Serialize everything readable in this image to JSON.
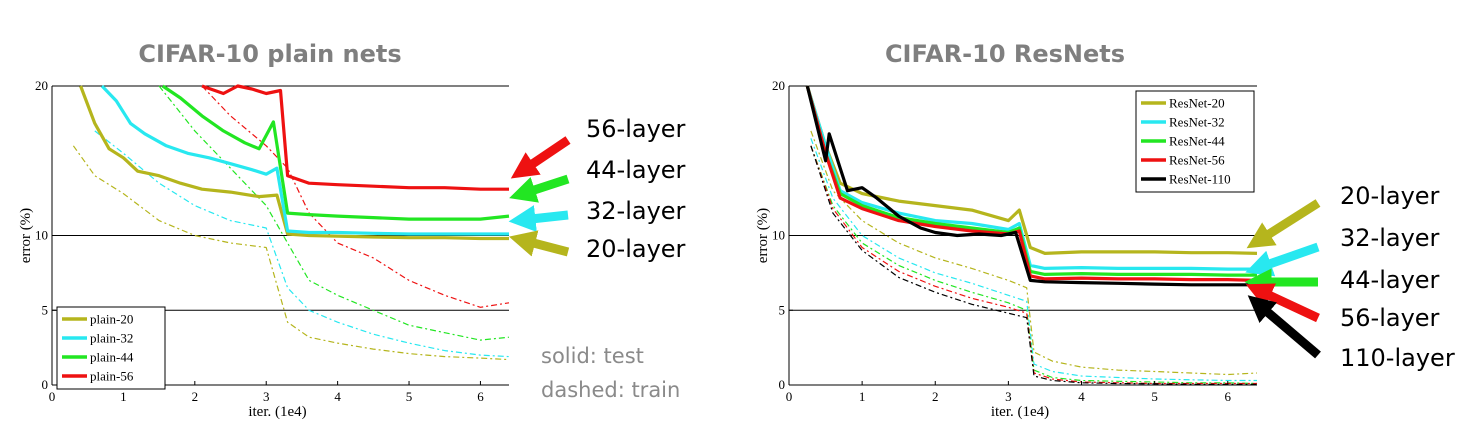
{
  "chart_data": [
    {
      "type": "line",
      "title": "CIFAR-10 plain nets",
      "xlabel": "iter. (1e4)",
      "ylabel": "error (%)",
      "xlim": [
        0,
        6.4
      ],
      "ylim": [
        0,
        20
      ],
      "xticks": [
        0,
        1,
        2,
        3,
        4,
        5,
        6
      ],
      "yticks": [
        0,
        5,
        10,
        20
      ],
      "grid": "horizontal lines at 5, 10, 20",
      "legend_position": "bottom-left",
      "legend": [
        "plain-20",
        "plain-32",
        "plain-44",
        "plain-56"
      ],
      "series": [
        {
          "name": "plain-20",
          "color": "#b5b51d",
          "style": "solid (test)",
          "x": [
            0.4,
            0.6,
            0.8,
            1.0,
            1.2,
            1.5,
            1.8,
            2.1,
            2.5,
            2.9,
            3.15,
            3.3,
            3.6,
            4.0,
            4.5,
            5.0,
            5.5,
            6.0,
            6.4
          ],
          "y": [
            20,
            17.5,
            15.8,
            15.2,
            14.3,
            14.0,
            13.5,
            13.1,
            12.9,
            12.6,
            12.7,
            10.1,
            10.0,
            9.95,
            9.9,
            9.85,
            9.85,
            9.8,
            9.8
          ]
        },
        {
          "name": "plain-32",
          "color": "#28e8f0",
          "style": "solid (test)",
          "x": [
            0.7,
            0.9,
            1.1,
            1.3,
            1.6,
            1.9,
            2.2,
            2.5,
            2.8,
            3.0,
            3.15,
            3.3,
            3.6,
            4.0,
            4.5,
            5.0,
            5.5,
            6.0,
            6.4
          ],
          "y": [
            20,
            19.0,
            17.5,
            16.8,
            16.0,
            15.5,
            15.2,
            14.8,
            14.4,
            14.1,
            14.5,
            10.3,
            10.2,
            10.2,
            10.15,
            10.1,
            10.1,
            10.1,
            10.1
          ]
        },
        {
          "name": "plain-44",
          "color": "#22e622",
          "style": "solid (test)",
          "x": [
            1.55,
            1.8,
            2.1,
            2.4,
            2.7,
            2.9,
            3.1,
            3.3,
            3.6,
            4.0,
            4.5,
            5.0,
            5.5,
            6.0,
            6.4
          ],
          "y": [
            20,
            19.2,
            18.0,
            17.0,
            16.2,
            15.8,
            17.6,
            11.5,
            11.4,
            11.3,
            11.2,
            11.1,
            11.1,
            11.1,
            11.3
          ]
        },
        {
          "name": "plain-56",
          "color": "#ee1111",
          "style": "solid (test)",
          "x": [
            2.1,
            2.4,
            2.6,
            2.8,
            3.0,
            3.2,
            3.3,
            3.6,
            4.0,
            4.5,
            5.0,
            5.5,
            6.0,
            6.4
          ],
          "y": [
            20,
            19.5,
            20,
            19.8,
            19.5,
            19.7,
            14.0,
            13.5,
            13.4,
            13.3,
            13.2,
            13.2,
            13.1,
            13.1
          ]
        },
        {
          "name": "plain-20",
          "color": "#b5b51d",
          "style": "dashed (train)",
          "x": [
            0.3,
            0.6,
            1.0,
            1.5,
            2.0,
            2.5,
            3.0,
            3.3,
            3.6,
            4.0,
            4.5,
            5.0,
            5.5,
            6.0,
            6.4
          ],
          "y": [
            16,
            14,
            12.8,
            11,
            10,
            9.5,
            9.2,
            4.2,
            3.2,
            2.8,
            2.4,
            2.1,
            1.9,
            1.8,
            1.7
          ]
        },
        {
          "name": "plain-32",
          "color": "#28e8f0",
          "style": "dashed (train)",
          "x": [
            0.6,
            1.0,
            1.5,
            2.0,
            2.5,
            3.0,
            3.3,
            3.6,
            4.0,
            4.5,
            5.0,
            5.5,
            6.0,
            6.4
          ],
          "y": [
            17,
            15.5,
            13.5,
            12.0,
            11.0,
            10.5,
            6.5,
            5.0,
            4.2,
            3.4,
            2.8,
            2.3,
            2.0,
            1.9
          ]
        },
        {
          "name": "plain-44",
          "color": "#22e622",
          "style": "dashed (train)",
          "x": [
            1.5,
            2.0,
            2.5,
            3.0,
            3.3,
            3.6,
            4.0,
            4.5,
            5.0,
            5.5,
            6.0,
            6.4
          ],
          "y": [
            20,
            17,
            14.5,
            12.0,
            9.5,
            7.0,
            6.0,
            5.0,
            4.0,
            3.5,
            3.0,
            3.2
          ]
        },
        {
          "name": "plain-56",
          "color": "#ee1111",
          "style": "dashed (train)",
          "x": [
            2.1,
            2.5,
            3.0,
            3.3,
            3.6,
            4.0,
            4.5,
            5.0,
            5.5,
            6.0,
            6.4
          ],
          "y": [
            20,
            18,
            16,
            14.5,
            11.5,
            9.5,
            8.5,
            7.0,
            6.0,
            5.2,
            5.5
          ]
        }
      ]
    },
    {
      "type": "line",
      "title": "CIFAR-10 ResNets",
      "xlabel": "iter. (1e4)",
      "ylabel": "error (%)",
      "xlim": [
        0,
        6.4
      ],
      "ylim": [
        0,
        20
      ],
      "xticks": [
        0,
        1,
        2,
        3,
        4,
        5,
        6
      ],
      "yticks": [
        0,
        5,
        10,
        20
      ],
      "grid": "horizontal lines at 5, 10, 20",
      "legend_position": "top-right",
      "legend": [
        "ResNet-20",
        "ResNet-32",
        "ResNet-44",
        "ResNet-56",
        "ResNet-110"
      ],
      "series": [
        {
          "name": "ResNet-20",
          "color": "#b5b51d",
          "style": "solid (test)",
          "x": [
            0.25,
            0.5,
            0.7,
            1.0,
            1.5,
            2.0,
            2.5,
            3.0,
            3.15,
            3.3,
            3.5,
            4.0,
            4.5,
            5.0,
            5.5,
            6.0,
            6.4
          ],
          "y": [
            20,
            16,
            13.5,
            12.8,
            12.3,
            12.0,
            11.7,
            11.0,
            11.7,
            9.2,
            8.8,
            8.9,
            8.9,
            8.9,
            8.85,
            8.85,
            8.8
          ]
        },
        {
          "name": "ResNet-32",
          "color": "#28e8f0",
          "style": "solid (test)",
          "x": [
            0.25,
            0.5,
            0.7,
            1.0,
            1.5,
            2.0,
            2.5,
            3.0,
            3.15,
            3.3,
            3.5,
            4.0,
            4.5,
            5.0,
            5.5,
            6.0,
            6.4
          ],
          "y": [
            20,
            16,
            13,
            12.2,
            11.5,
            11.0,
            10.8,
            10.4,
            10.8,
            8.0,
            7.8,
            7.85,
            7.8,
            7.8,
            7.8,
            7.75,
            7.75
          ]
        },
        {
          "name": "ResNet-44",
          "color": "#22e622",
          "style": "solid (test)",
          "x": [
            0.25,
            0.5,
            0.7,
            1.0,
            1.5,
            2.0,
            2.5,
            3.0,
            3.15,
            3.3,
            3.5,
            4.0,
            4.5,
            5.0,
            5.5,
            6.0,
            6.4
          ],
          "y": [
            20,
            15.5,
            12.8,
            12.0,
            11.2,
            10.8,
            10.5,
            10.2,
            10.5,
            7.6,
            7.4,
            7.45,
            7.4,
            7.4,
            7.4,
            7.35,
            7.35
          ]
        },
        {
          "name": "ResNet-56",
          "color": "#ee1111",
          "style": "solid (test)",
          "x": [
            0.25,
            0.5,
            0.7,
            1.0,
            1.5,
            2.0,
            2.5,
            3.0,
            3.15,
            3.3,
            3.5,
            4.0,
            4.5,
            5.0,
            5.5,
            6.0,
            6.4
          ],
          "y": [
            20,
            15.5,
            12.5,
            11.8,
            11.0,
            10.6,
            10.3,
            10.1,
            10.3,
            7.3,
            7.1,
            7.15,
            7.1,
            7.1,
            7.05,
            7.05,
            7.0
          ]
        },
        {
          "name": "ResNet-110",
          "color": "#000000",
          "style": "solid (test)",
          "x": [
            0.25,
            0.4,
            0.5,
            0.55,
            0.7,
            0.8,
            1.0,
            1.2,
            1.5,
            1.8,
            2.0,
            2.3,
            2.6,
            2.9,
            3.1,
            3.3,
            3.5,
            4.0,
            4.5,
            5.0,
            5.5,
            6.0,
            6.4
          ],
          "y": [
            20,
            17,
            15,
            16.8,
            14.5,
            13,
            13.2,
            12.5,
            11.3,
            10.5,
            10.2,
            10.0,
            10.1,
            10.0,
            10.2,
            7.0,
            6.9,
            6.85,
            6.8,
            6.75,
            6.7,
            6.7,
            6.7
          ]
        },
        {
          "name": "ResNet-20",
          "color": "#b5b51d",
          "style": "dashed (train)",
          "x": [
            0.3,
            0.6,
            1.0,
            1.5,
            2.0,
            2.5,
            3.0,
            3.25,
            3.35,
            3.6,
            4.0,
            4.5,
            5.0,
            5.5,
            6.0,
            6.4
          ],
          "y": [
            17,
            13,
            11,
            9.5,
            8.5,
            7.8,
            7.0,
            6.5,
            2.2,
            1.6,
            1.2,
            1.0,
            0.9,
            0.8,
            0.7,
            0.8
          ]
        },
        {
          "name": "ResNet-32",
          "color": "#28e8f0",
          "style": "dashed (train)",
          "x": [
            0.3,
            0.6,
            1.0,
            1.5,
            2.0,
            2.5,
            3.0,
            3.25,
            3.35,
            3.6,
            4.0,
            4.5,
            5.0,
            5.5,
            6.0,
            6.4
          ],
          "y": [
            16.5,
            12.5,
            10,
            8.5,
            7.5,
            6.8,
            6.0,
            5.6,
            1.4,
            0.9,
            0.6,
            0.5,
            0.4,
            0.35,
            0.3,
            0.3
          ]
        },
        {
          "name": "ResNet-44",
          "color": "#22e622",
          "style": "dashed (train)",
          "x": [
            0.3,
            0.6,
            1.0,
            1.5,
            2.0,
            2.5,
            3.0,
            3.25,
            3.35,
            3.6,
            4.0,
            4.5,
            5.0,
            5.5,
            6.0,
            6.4
          ],
          "y": [
            16,
            12,
            9.5,
            8.0,
            7.0,
            6.2,
            5.5,
            5.0,
            1.0,
            0.5,
            0.3,
            0.25,
            0.2,
            0.15,
            0.15,
            0.1
          ]
        },
        {
          "name": "ResNet-56",
          "color": "#ee1111",
          "style": "dashed (train)",
          "x": [
            0.3,
            0.6,
            1.0,
            1.5,
            2.0,
            2.5,
            3.0,
            3.25,
            3.35,
            3.6,
            4.0,
            4.5,
            5.0,
            5.5,
            6.0,
            6.4
          ],
          "y": [
            16,
            11.8,
            9.2,
            7.6,
            6.6,
            5.8,
            5.2,
            4.8,
            0.8,
            0.4,
            0.2,
            0.15,
            0.1,
            0.1,
            0.1,
            0.1
          ]
        },
        {
          "name": "ResNet-110",
          "color": "#000000",
          "style": "dashed (train)",
          "x": [
            0.3,
            0.6,
            1.0,
            1.5,
            2.0,
            2.5,
            3.0,
            3.25,
            3.35,
            3.6,
            4.0,
            4.5,
            5.0,
            5.5,
            6.0,
            6.4
          ],
          "y": [
            16,
            11.5,
            9.0,
            7.2,
            6.2,
            5.4,
            4.8,
            4.5,
            0.6,
            0.3,
            0.15,
            0.1,
            0.08,
            0.05,
            0.05,
            0.05
          ]
        }
      ]
    }
  ],
  "annotations": {
    "left": [
      {
        "text": "56-layer",
        "color": "#ee1111"
      },
      {
        "text": "44-layer",
        "color": "#22e622"
      },
      {
        "text": "32-layer",
        "color": "#28e8f0"
      },
      {
        "text": "20-layer",
        "color": "#b5b51d"
      }
    ],
    "right": [
      {
        "text": "20-layer",
        "color": "#b5b51d"
      },
      {
        "text": "32-layer",
        "color": "#28e8f0"
      },
      {
        "text": "44-layer",
        "color": "#22e622"
      },
      {
        "text": "56-layer",
        "color": "#ee1111"
      },
      {
        "text": "110-layer",
        "color": "#000000"
      }
    ],
    "note_test": "solid: test",
    "note_train": "dashed: train"
  }
}
